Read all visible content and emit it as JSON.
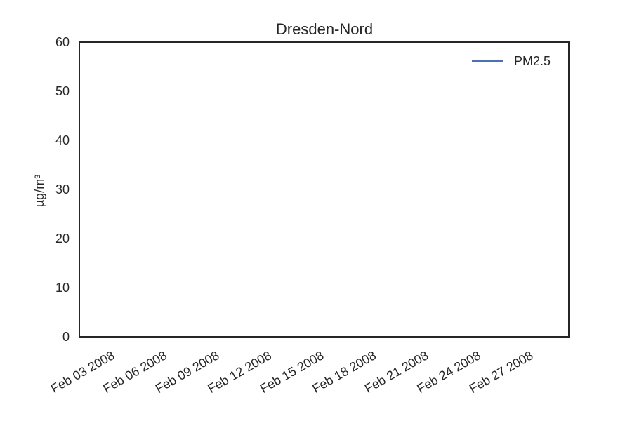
{
  "chart_data": {
    "type": "line",
    "title": "Dresden-Nord",
    "xlabel": "",
    "ylabel": "µg/m³",
    "ylim": [
      0,
      60
    ],
    "yticks": [
      0,
      10,
      20,
      30,
      40,
      50,
      60
    ],
    "xticks": [
      "Feb 03 2008",
      "Feb 06 2008",
      "Feb 09 2008",
      "Feb 12 2008",
      "Feb 15 2008",
      "Feb 18 2008",
      "Feb 21 2008",
      "Feb 24 2008",
      "Feb 27 2008"
    ],
    "grid": false,
    "legend_position": "top-right",
    "series": [
      {
        "name": "PM2.5",
        "color": "#4c72b0",
        "values": []
      }
    ]
  }
}
